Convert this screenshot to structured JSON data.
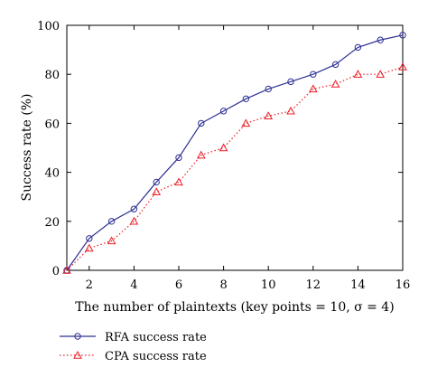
{
  "chart_data": {
    "type": "line",
    "title": "",
    "xlabel": "The number of plaintexts (key points = 10, σ = 4)",
    "ylabel": "Success rate (%)",
    "xlim": [
      1,
      16
    ],
    "ylim": [
      0,
      100
    ],
    "xticks": [
      2,
      4,
      6,
      8,
      10,
      12,
      14,
      16
    ],
    "yticks": [
      0,
      20,
      40,
      60,
      80,
      100
    ],
    "grid": false,
    "legend_position": "below",
    "x": [
      1,
      2,
      3,
      4,
      5,
      6,
      7,
      8,
      9,
      10,
      11,
      12,
      13,
      14,
      15,
      16
    ],
    "series": [
      {
        "name": "RFA success rate",
        "color": "#2e3192",
        "line_style": "solid",
        "marker": "circle",
        "values": [
          0,
          13,
          20,
          25,
          36,
          46,
          60,
          65,
          70,
          74,
          77,
          80,
          84,
          91,
          94,
          96
        ]
      },
      {
        "name": "CPA success rate",
        "color": "#ed1c24",
        "line_style": "dotted",
        "marker": "triangle",
        "values": [
          0,
          9,
          12,
          20,
          32,
          36,
          47,
          50,
          60,
          63,
          65,
          74,
          76,
          80,
          80,
          83
        ]
      }
    ]
  }
}
